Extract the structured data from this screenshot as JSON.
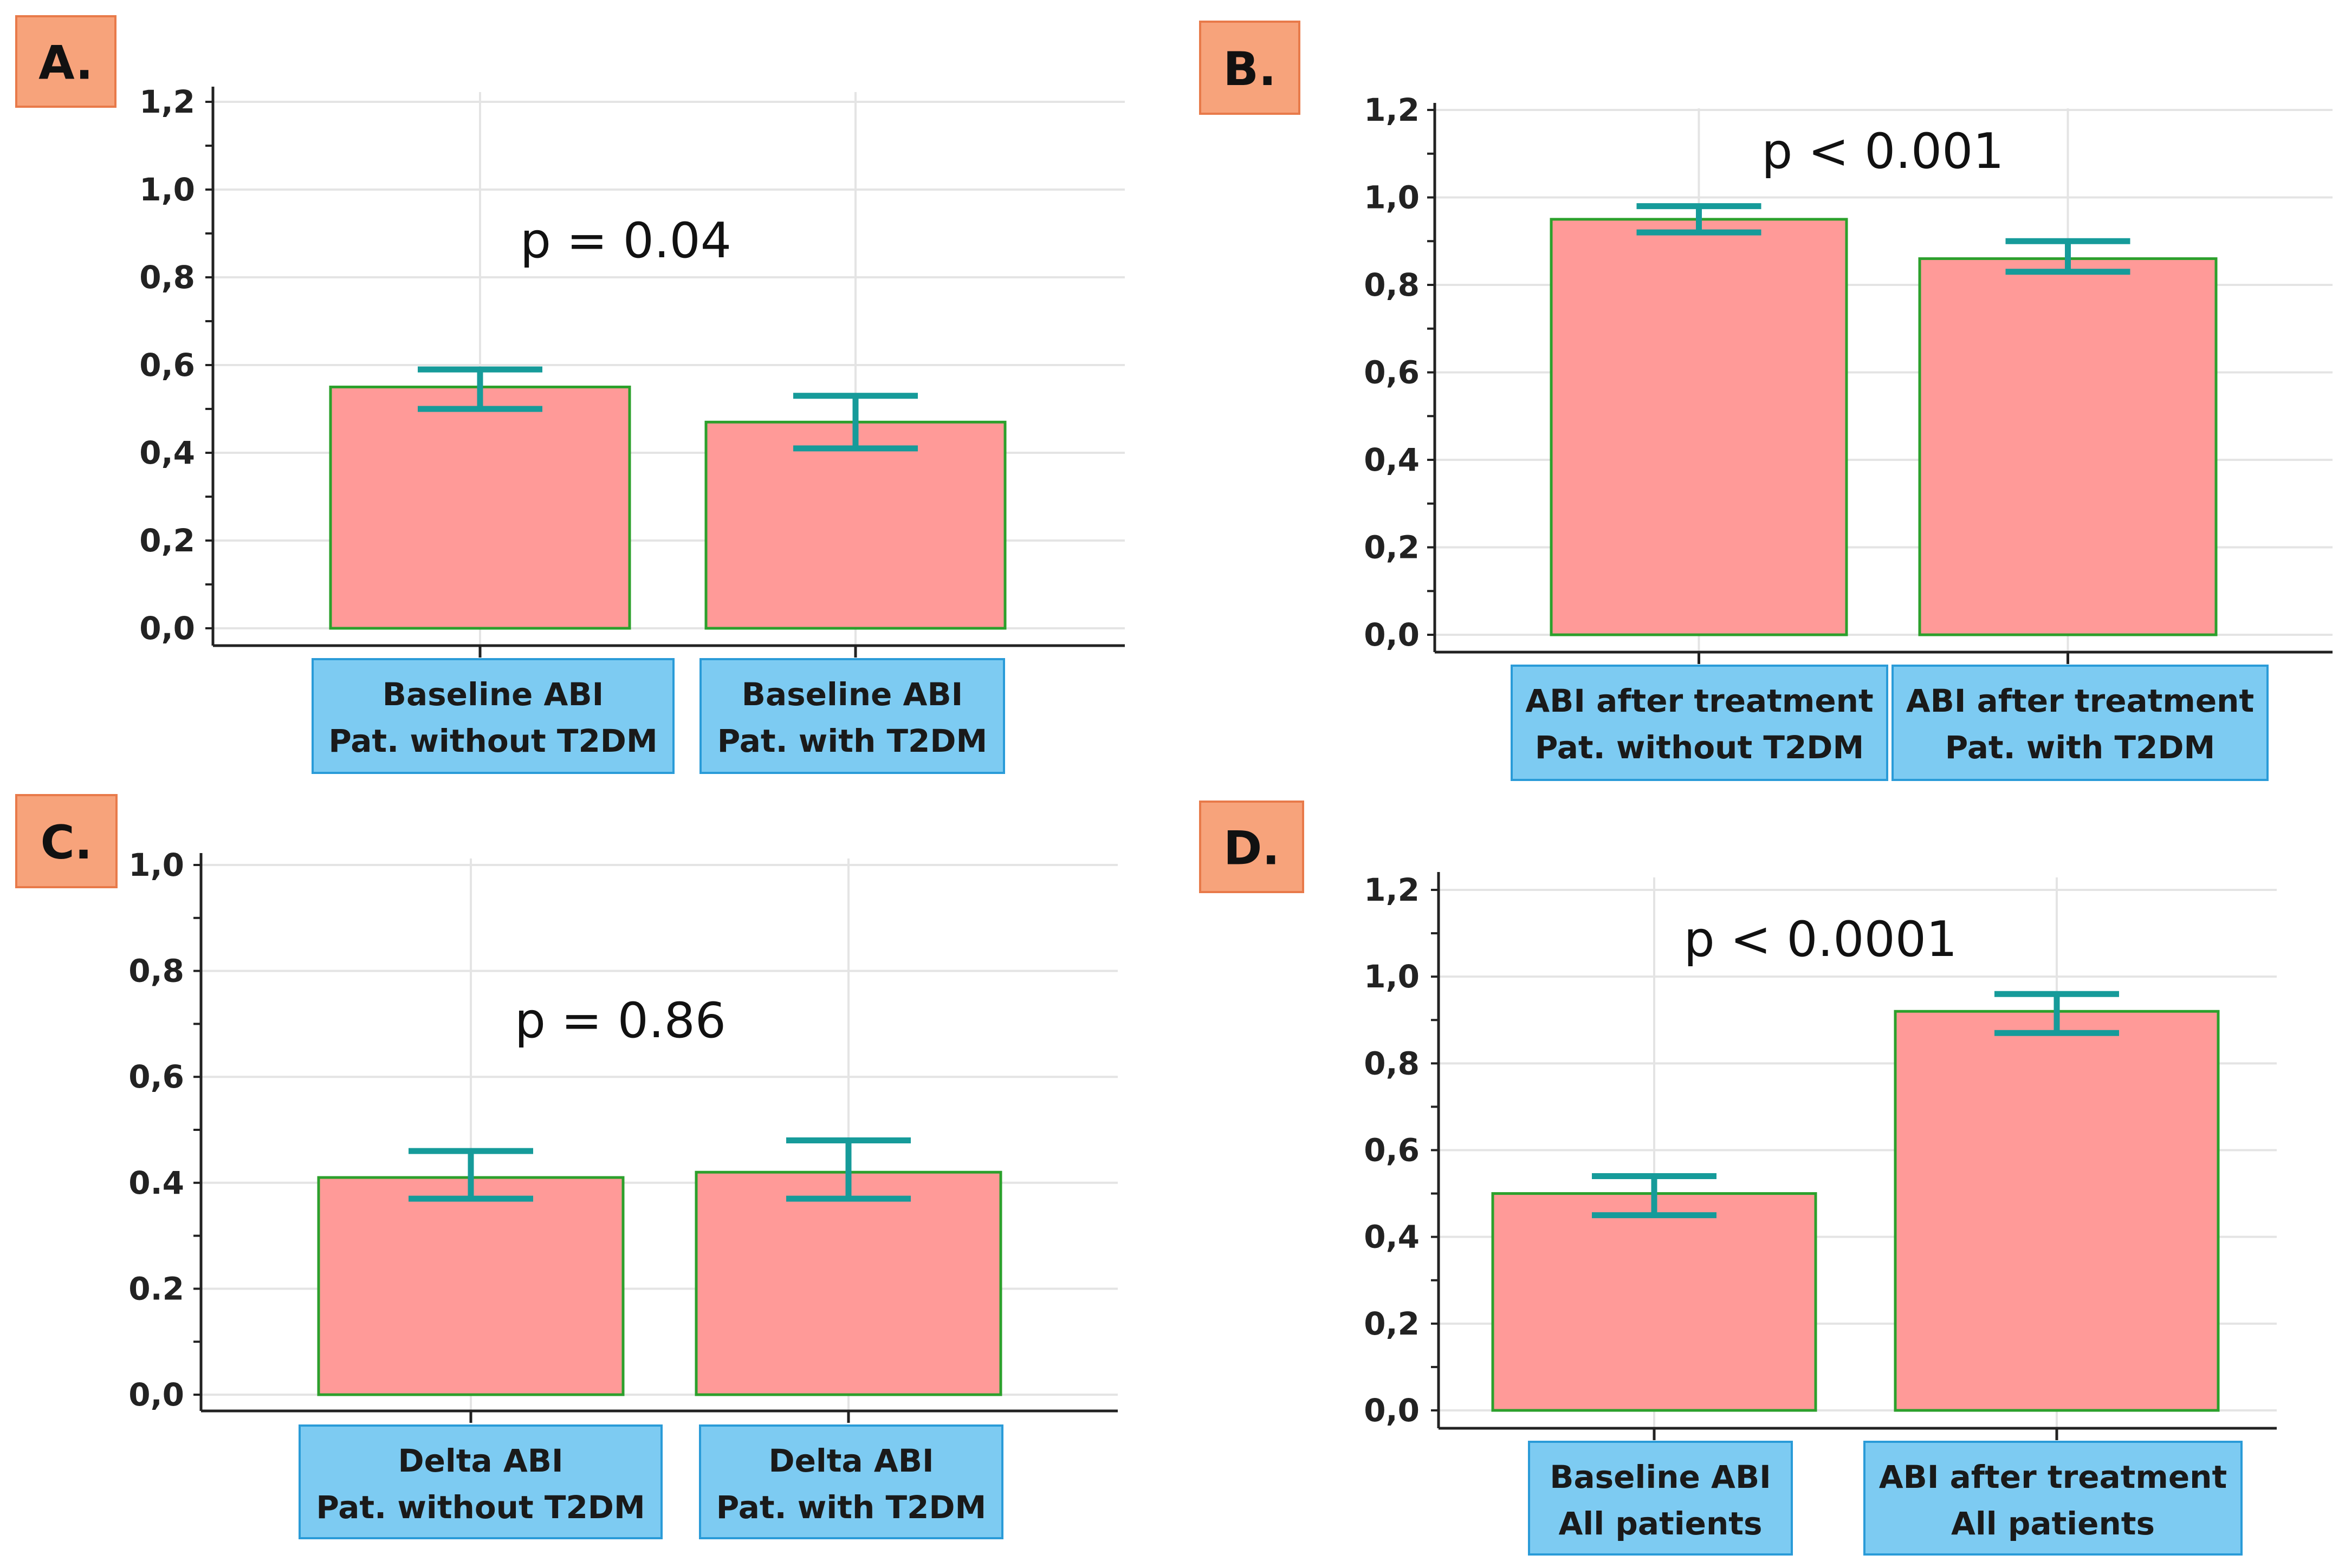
{
  "colors": {
    "bar_fill": "#ff9a98",
    "bar_stroke": "#2ca02c",
    "error_bar": "#169b9a",
    "label_box_fill": "#7dcbf2",
    "label_box_stroke": "#2a9bd8",
    "panel_tag_fill": "#f7a37b",
    "panel_tag_stroke": "#e87a4a",
    "grid": "#e4e4e4",
    "axis": "#222222"
  },
  "chart_data": [
    {
      "panel": "A.",
      "type": "bar",
      "categories": [
        [
          "Baseline ABI",
          "Pat. without T2DM"
        ],
        [
          "Baseline ABI",
          "Pat. with T2DM"
        ]
      ],
      "values": [
        0.55,
        0.47
      ],
      "error": [
        [
          0.5,
          0.59
        ],
        [
          0.41,
          0.53
        ]
      ],
      "annotation": "p = 0.04",
      "ylim": [
        0,
        1.2
      ],
      "yticks": [
        0.0,
        0.2,
        0.4,
        0.6,
        0.8,
        1.0,
        1.2
      ],
      "ytick_labels": [
        "0,0",
        "0,2",
        "0,4",
        "0,6",
        "0,8",
        "1,0",
        "1,2"
      ],
      "grid": true
    },
    {
      "panel": "B.",
      "type": "bar",
      "categories": [
        [
          "ABI after treatment",
          "Pat. without T2DM"
        ],
        [
          "ABI after treatment",
          "Pat. with T2DM"
        ]
      ],
      "values": [
        0.95,
        0.86
      ],
      "error": [
        [
          0.92,
          0.98
        ],
        [
          0.83,
          0.9
        ]
      ],
      "annotation": "p < 0.001",
      "ylim": [
        0,
        1.2
      ],
      "yticks": [
        0.0,
        0.2,
        0.4,
        0.6,
        0.8,
        1.0,
        1.2
      ],
      "ytick_labels": [
        "0,0",
        "0,2",
        "0,4",
        "0,6",
        "0,8",
        "1,0",
        "1,2"
      ],
      "grid": true
    },
    {
      "panel": "C.",
      "type": "bar",
      "categories": [
        [
          "Delta ABI",
          "Pat. without T2DM"
        ],
        [
          "Delta ABI",
          "Pat. with T2DM"
        ]
      ],
      "values": [
        0.41,
        0.42
      ],
      "error": [
        [
          0.37,
          0.46
        ],
        [
          0.37,
          0.48
        ]
      ],
      "annotation": "p = 0.86",
      "ylim": [
        0,
        1.0
      ],
      "yticks": [
        0.0,
        0.2,
        0.4,
        0.6,
        0.8,
        1.0
      ],
      "ytick_labels": [
        "0,0",
        "0.2",
        "0.4",
        "0,6",
        "0,8",
        "1,0"
      ],
      "grid": true
    },
    {
      "panel": "D.",
      "type": "bar",
      "categories": [
        [
          "Baseline ABI",
          "All patients"
        ],
        [
          "ABI after treatment",
          "All patients"
        ]
      ],
      "values": [
        0.5,
        0.92
      ],
      "error": [
        [
          0.45,
          0.54
        ],
        [
          0.87,
          0.96
        ]
      ],
      "annotation": "p < 0.0001",
      "ylim": [
        0,
        1.2
      ],
      "yticks": [
        0.0,
        0.2,
        0.4,
        0.6,
        0.8,
        1.0,
        1.2
      ],
      "ytick_labels": [
        "0,0",
        "0,2",
        "0,4",
        "0,6",
        "0,8",
        "1,0",
        "1,2"
      ],
      "grid": true
    }
  ]
}
